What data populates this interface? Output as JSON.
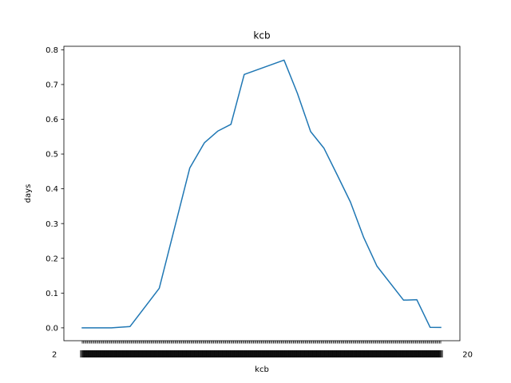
{
  "chart_data": {
    "type": "line",
    "title": "kcb",
    "xlabel": "kcb",
    "ylabel": "days",
    "ylim": [
      -0.037,
      0.81
    ],
    "yticks": [
      "0.0",
      "0.1",
      "0.2",
      "0.3",
      "0.4",
      "0.5",
      "0.6",
      "0.7",
      "0.8"
    ],
    "x_tick_count": 271,
    "x_tick_labels_visible": {
      "first": "2",
      "last": "20"
    },
    "grid": false,
    "series": [
      {
        "color": "#1f77b4",
        "x": [
          0,
          6,
          22,
          36,
          58,
          81,
          92,
          102,
          112,
          122,
          152,
          162,
          172,
          182,
          192,
          202,
          212,
          222,
          242,
          252,
          262,
          270
        ],
        "y": [
          0.0,
          0.0,
          0.0,
          0.0038,
          0.1137,
          0.4601,
          0.5324,
          0.5658,
          0.5855,
          0.729,
          0.7702,
          0.6752,
          0.5647,
          0.5171,
          0.4402,
          0.3618,
          0.2597,
          0.1773,
          0.0797,
          0.0808,
          0.0015,
          0.0013
        ]
      }
    ]
  }
}
